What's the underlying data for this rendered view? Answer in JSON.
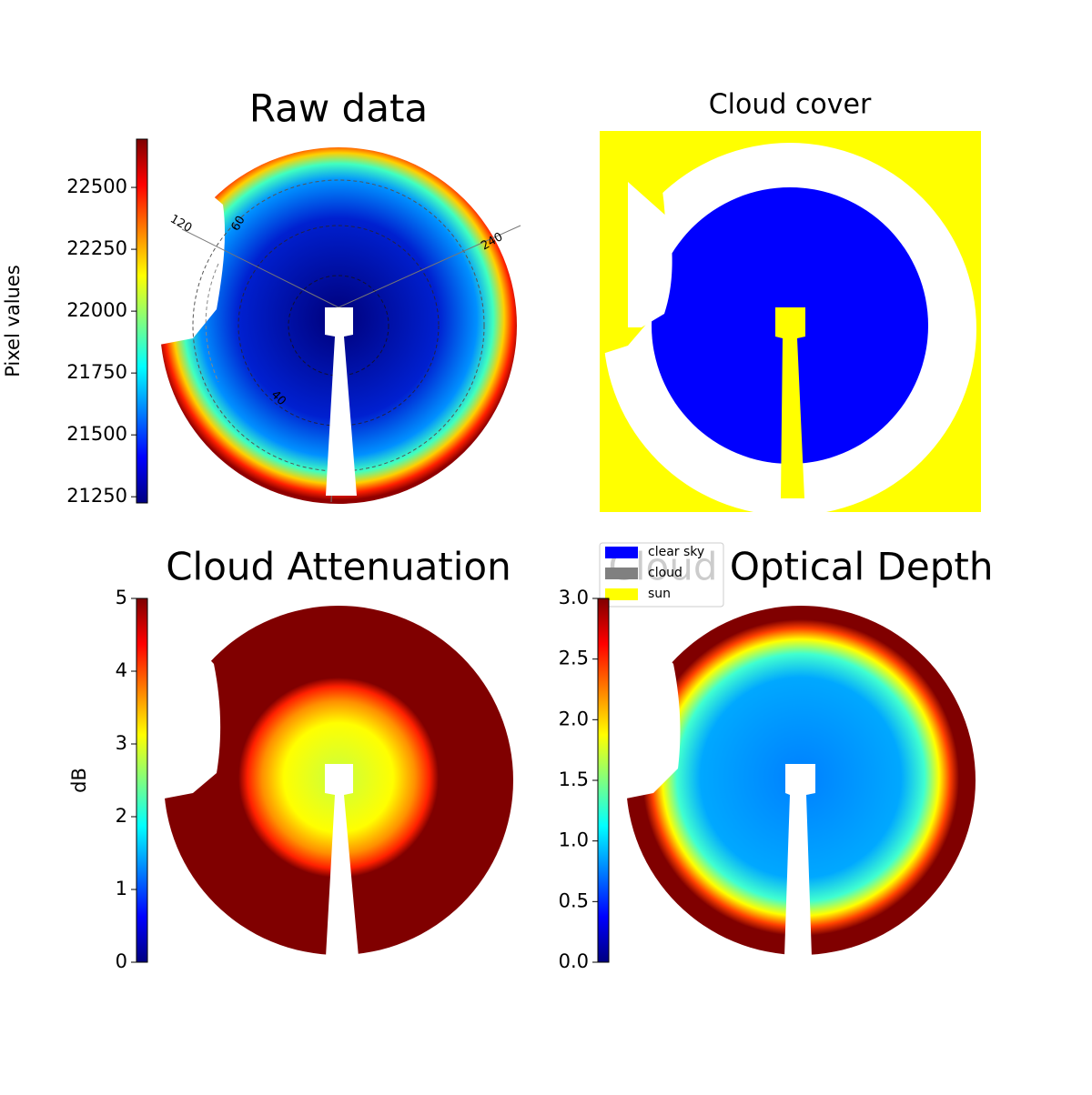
{
  "chart_data": [
    {
      "type": "image",
      "title": "Raw data",
      "colormap": "jet",
      "colorbar_label": "Pixel values",
      "ylim": [
        21225,
        22695
      ],
      "yticks": [
        21250,
        21500,
        21750,
        22000,
        22250,
        22500
      ],
      "polar_labels": [
        "120",
        "60",
        "240",
        "40"
      ]
    },
    {
      "type": "image",
      "title": "Cloud cover",
      "legend": [
        {
          "name": "clear sky",
          "color": "#0000ff"
        },
        {
          "name": "cloud",
          "color": "#808080"
        },
        {
          "name": "sun",
          "color": "#ffff00"
        }
      ]
    },
    {
      "type": "image",
      "title": "Cloud Attenuation",
      "colormap": "jet",
      "colorbar_label": "dB",
      "ylim": [
        0,
        5
      ],
      "yticks": [
        0,
        1,
        2,
        3,
        4,
        5
      ]
    },
    {
      "type": "image",
      "title": "Cloud Optical Depth",
      "colormap": "jet",
      "ylim": [
        0,
        3
      ],
      "yticks": [
        {
          "value": 0,
          "label": "0.0"
        },
        0.5,
        {
          "value": 1,
          "label": "1.0"
        },
        1.5,
        {
          "value": 2,
          "label": "2.0"
        },
        2.5,
        {
          "value": 3,
          "label": "3.0"
        }
      ]
    }
  ]
}
